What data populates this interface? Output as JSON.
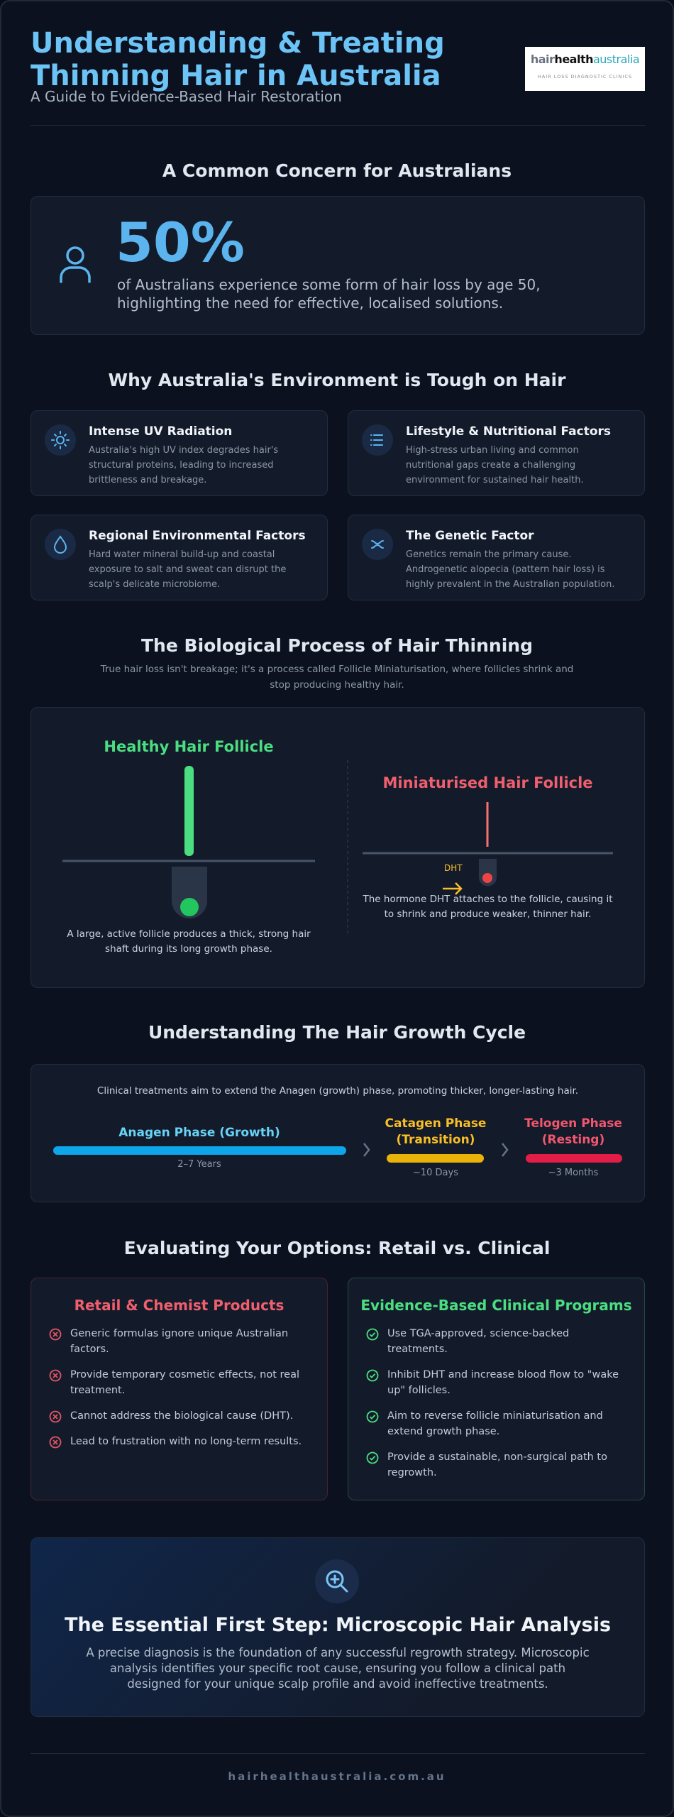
{
  "header": {
    "title": "Understanding & Treating Thinning Hair in Australia",
    "subtitle": "A Guide to Evidence-Based Hair Restoration",
    "logo": {
      "part1": "hair",
      "part2": "health",
      "part3": "australia",
      "tagline": "HAIR LOSS DIAGNOSTIC CLINICS"
    }
  },
  "stat": {
    "heading": "A Common Concern for Australians",
    "value": "50%",
    "text": "of Australians experience some form of hair loss by age 50, highlighting the need for effective, localised solutions."
  },
  "environment": {
    "heading": "Why Australia's Environment is Tough on Hair",
    "cards": [
      {
        "title": "Intense UV Radiation",
        "text": "Australia's high UV index degrades hair's structural proteins, leading to increased brittleness and breakage."
      },
      {
        "title": "Lifestyle & Nutritional Factors",
        "text": "High-stress urban living and common nutritional gaps create a challenging environment for sustained hair health."
      },
      {
        "title": "Regional Environmental Factors",
        "text": "Hard water mineral build-up and coastal exposure to salt and sweat can disrupt the scalp's delicate microbiome."
      },
      {
        "title": "The Genetic Factor",
        "text": "Genetics remain the primary cause. Androgenetic alopecia (pattern hair loss) is highly prevalent in the Australian population."
      }
    ]
  },
  "biology": {
    "heading": "The Biological Process of Hair Thinning",
    "intro": "True hair loss isn't breakage; it's a process called Follicle Miniaturisation, where follicles shrink and stop producing healthy hair.",
    "healthy": {
      "title": "Healthy Hair Follicle",
      "caption": "A large, active follicle produces a thick, strong hair shaft during its long growth phase."
    },
    "miniaturised": {
      "title": "Miniaturised Hair Follicle",
      "label": "DHT",
      "caption": "The hormone DHT attaches to the follicle, causing it to shrink and produce weaker, thinner hair."
    }
  },
  "cycle": {
    "heading": "Understanding The Hair Growth Cycle",
    "intro": "Clinical treatments aim to extend the Anagen (growth) phase, promoting thicker, longer-lasting hair.",
    "phases": [
      {
        "name": "Anagen Phase (Growth)",
        "duration": "2–7 Years"
      },
      {
        "name": "Catagen Phase (Transition)",
        "duration": "~10 Days"
      },
      {
        "name": "Telogen Phase (Resting)",
        "duration": "~3 Months"
      }
    ]
  },
  "options": {
    "heading": "Evaluating Your Options: Retail vs. Clinical",
    "retail": {
      "title": "Retail & Chemist Products",
      "items": [
        "Generic formulas ignore unique Australian factors.",
        "Provide temporary cosmetic effects, not real treatment.",
        "Cannot address the biological cause (DHT).",
        "Lead to frustration with no long-term results."
      ]
    },
    "clinical": {
      "title": "Evidence-Based Clinical Programs",
      "items": [
        "Use TGA-approved, science-backed treatments.",
        "Inhibit DHT and increase blood flow to \"wake up\" follicles.",
        "Aim to reverse follicle miniaturisation and extend growth phase.",
        "Provide a sustainable, non-surgical path to regrowth."
      ]
    }
  },
  "cta": {
    "heading": "The Essential First Step: Microscopic Hair Analysis",
    "text": "A precise diagnosis is the foundation of any successful regrowth strategy. Microscopic analysis identifies your specific root cause, ensuring you follow a clinical path designed for your unique scalp profile and avoid ineffective treatments."
  },
  "footer": {
    "url": "hairhealthaustralia.com.au"
  }
}
